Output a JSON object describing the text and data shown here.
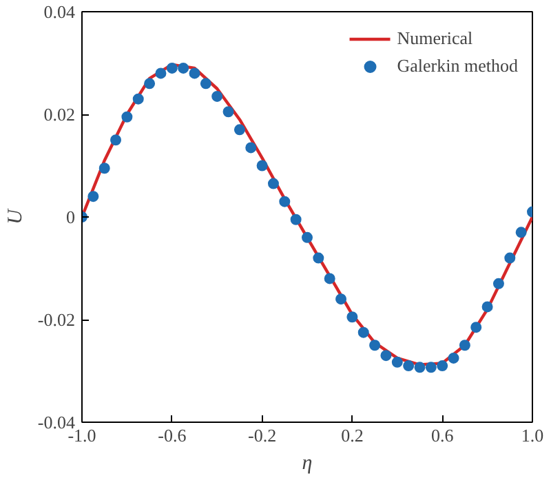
{
  "chart_data": {
    "type": "line",
    "xlabel": "η",
    "ylabel": "U",
    "xlim": [
      -1.0,
      1.0
    ],
    "ylim": [
      -0.04,
      0.04
    ],
    "xticks": [
      {
        "value": -1.0,
        "label": "-1.0"
      },
      {
        "value": -0.6,
        "label": "-0.6"
      },
      {
        "value": -0.2,
        "label": "-0.2"
      },
      {
        "value": 0.2,
        "label": "0.2"
      },
      {
        "value": 0.6,
        "label": "0.6"
      },
      {
        "value": 1.0,
        "label": "1.0"
      }
    ],
    "yticks": [
      {
        "value": -0.04,
        "label": "-0.04"
      },
      {
        "value": -0.02,
        "label": "-0.02"
      },
      0,
      {
        "value": 0.02,
        "label": "0.02"
      },
      {
        "value": 0.04,
        "label": "0.04"
      }
    ],
    "grid": false,
    "legend": "top right",
    "series": [
      {
        "name": "Numerical",
        "color": "#d62728",
        "marker": "none",
        "line_style": "solid",
        "x": [
          -1.0,
          -0.9,
          -0.8,
          -0.7,
          -0.6,
          -0.5,
          -0.4,
          -0.3,
          -0.2,
          -0.1,
          0.0,
          0.1,
          0.2,
          0.3,
          0.4,
          0.5,
          0.6,
          0.7,
          0.8,
          0.9,
          1.0
        ],
        "values": [
          0.0,
          0.011,
          0.02,
          0.027,
          0.0297,
          0.029,
          0.025,
          0.019,
          0.0115,
          0.0035,
          -0.004,
          -0.0115,
          -0.019,
          -0.0245,
          -0.0275,
          -0.0288,
          -0.0285,
          -0.025,
          -0.018,
          -0.009,
          0.0
        ]
      },
      {
        "name": "Galerkin method",
        "type": "scatter",
        "color": "#1f6eb4",
        "marker": "circle",
        "x": [
          -1.0,
          -0.95,
          -0.9,
          -0.85,
          -0.8,
          -0.75,
          -0.7,
          -0.65,
          -0.6,
          -0.55,
          -0.5,
          -0.45,
          -0.4,
          -0.35,
          -0.3,
          -0.25,
          -0.2,
          -0.15,
          -0.1,
          -0.05,
          0.0,
          0.05,
          0.1,
          0.15,
          0.2,
          0.25,
          0.3,
          0.35,
          0.4,
          0.45,
          0.5,
          0.55,
          0.6,
          0.65,
          0.7,
          0.75,
          0.8,
          0.85,
          0.9,
          0.95,
          1.0
        ],
        "values": [
          0.0,
          0.004,
          0.0095,
          0.015,
          0.0195,
          0.023,
          0.026,
          0.028,
          0.029,
          0.029,
          0.028,
          0.026,
          0.0235,
          0.0205,
          0.017,
          0.0135,
          0.01,
          0.0065,
          0.003,
          -0.0005,
          -0.004,
          -0.008,
          -0.012,
          -0.016,
          -0.0195,
          -0.0225,
          -0.025,
          -0.027,
          -0.0283,
          -0.029,
          -0.0293,
          -0.0293,
          -0.029,
          -0.0275,
          -0.025,
          -0.0215,
          -0.0175,
          -0.013,
          -0.008,
          -0.003,
          0.001
        ]
      }
    ]
  }
}
